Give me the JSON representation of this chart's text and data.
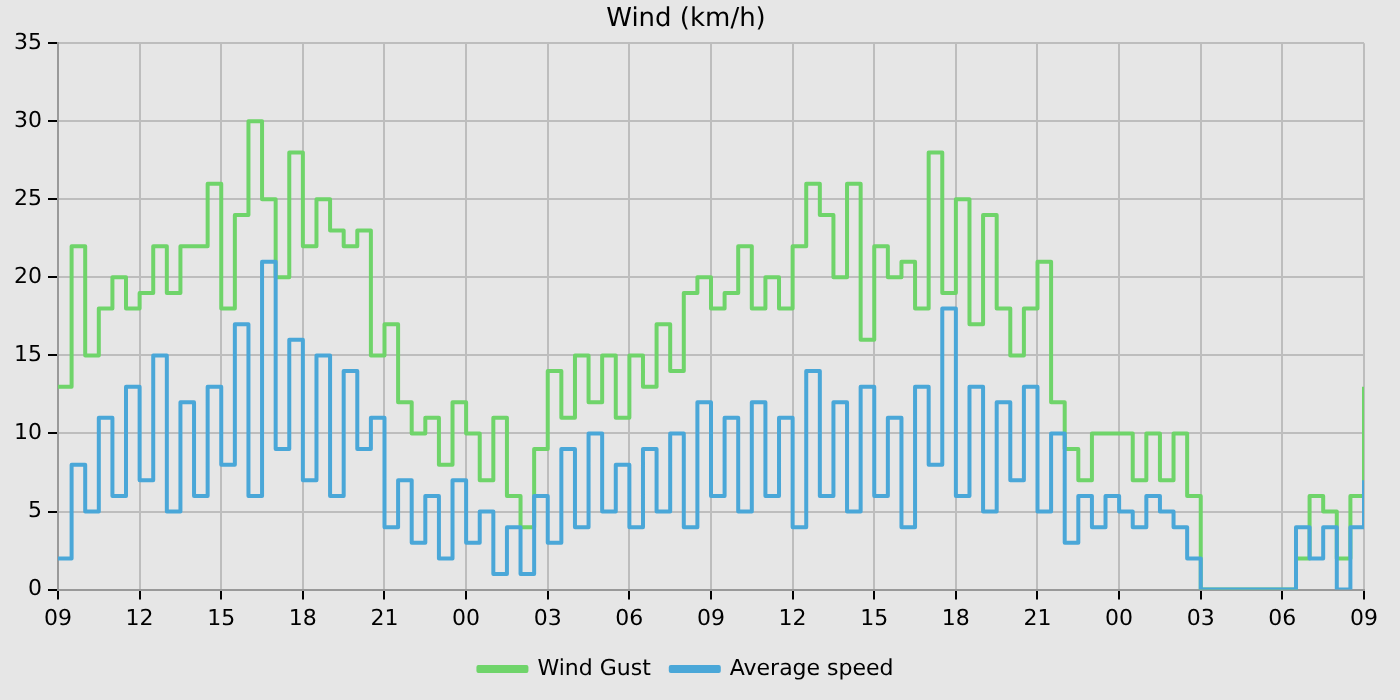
{
  "chart_data": {
    "type": "step",
    "title": "Wind (km/h)",
    "x": [
      9,
      9.5,
      10,
      10.5,
      11,
      11.5,
      12,
      12.5,
      13,
      13.5,
      14,
      14.5,
      15,
      15.5,
      16,
      16.5,
      17,
      17.5,
      18,
      18.5,
      19,
      19.5,
      20,
      20.5,
      21,
      21.5,
      22,
      22.5,
      23,
      23.5,
      24,
      24.5,
      25,
      25.5,
      26,
      26.5,
      27,
      27.5,
      28,
      28.5,
      29,
      29.5,
      30,
      30.5,
      31,
      31.5,
      32,
      32.5,
      33,
      33.5,
      34,
      34.5,
      35,
      35.5,
      36,
      36.5,
      37,
      37.5,
      38,
      38.5,
      39,
      39.5,
      40,
      40.5,
      41,
      41.5,
      42,
      42.5,
      43,
      43.5,
      44,
      44.5,
      45,
      45.5,
      46,
      46.5,
      47,
      47.5,
      48,
      48.5,
      49,
      49.5,
      50,
      50.5,
      51,
      51.5,
      52,
      52.5,
      53,
      53.5,
      54,
      54.5,
      55,
      55.5,
      56,
      56.5,
      57
    ],
    "series": [
      {
        "name": "Wind Gust",
        "color": "#6fd46a",
        "values": [
          13,
          22,
          15,
          18,
          20,
          18,
          19,
          22,
          19,
          22,
          22,
          26,
          18,
          24,
          30,
          25,
          20,
          28,
          22,
          25,
          23,
          22,
          23,
          15,
          17,
          12,
          10,
          11,
          8,
          12,
          10,
          7,
          11,
          6,
          4,
          9,
          14,
          11,
          15,
          12,
          15,
          11,
          15,
          13,
          17,
          14,
          19,
          20,
          18,
          19,
          22,
          18,
          20,
          18,
          22,
          26,
          24,
          20,
          26,
          16,
          22,
          20,
          21,
          18,
          28,
          19,
          25,
          17,
          24,
          18,
          15,
          18,
          21,
          12,
          9,
          7,
          10,
          10,
          10,
          7,
          10,
          7,
          10,
          6,
          0,
          0,
          0,
          0,
          0,
          0,
          0,
          2,
          6,
          5,
          2,
          6,
          13
        ]
      },
      {
        "name": "Average speed",
        "color": "#4aa7d8",
        "values": [
          2,
          8,
          5,
          11,
          6,
          13,
          7,
          15,
          5,
          12,
          6,
          13,
          8,
          17,
          6,
          21,
          9,
          16,
          7,
          15,
          6,
          14,
          9,
          11,
          4,
          7,
          3,
          6,
          2,
          7,
          3,
          5,
          1,
          4,
          1,
          6,
          3,
          9,
          4,
          10,
          5,
          8,
          4,
          9,
          5,
          10,
          4,
          12,
          6,
          11,
          5,
          12,
          6,
          11,
          4,
          14,
          6,
          12,
          5,
          13,
          6,
          11,
          4,
          13,
          8,
          18,
          6,
          13,
          5,
          12,
          7,
          13,
          5,
          10,
          3,
          6,
          4,
          6,
          5,
          4,
          6,
          5,
          4,
          2,
          0,
          0,
          0,
          0,
          0,
          0,
          0,
          4,
          2,
          4,
          0,
          4,
          7
        ]
      }
    ],
    "xlim": [
      9,
      57
    ],
    "xticks": [
      {
        "value": 9,
        "label": "09"
      },
      {
        "value": 12,
        "label": "12"
      },
      {
        "value": 15,
        "label": "15"
      },
      {
        "value": 18,
        "label": "18"
      },
      {
        "value": 21,
        "label": "21"
      },
      {
        "value": 24,
        "label": "00"
      },
      {
        "value": 27,
        "label": "03"
      },
      {
        "value": 30,
        "label": "06"
      },
      {
        "value": 33,
        "label": "09"
      },
      {
        "value": 36,
        "label": "12"
      },
      {
        "value": 39,
        "label": "15"
      },
      {
        "value": 42,
        "label": "18"
      },
      {
        "value": 45,
        "label": "21"
      },
      {
        "value": 48,
        "label": "00"
      },
      {
        "value": 51,
        "label": "03"
      },
      {
        "value": 54,
        "label": "06"
      },
      {
        "value": 57,
        "label": "09"
      }
    ],
    "ylim": [
      0,
      35
    ],
    "yticks": [
      0,
      5,
      10,
      15,
      20,
      25,
      30,
      35
    ],
    "grid": true,
    "legend": "bottom",
    "marker": "none",
    "line_style": "solid"
  }
}
